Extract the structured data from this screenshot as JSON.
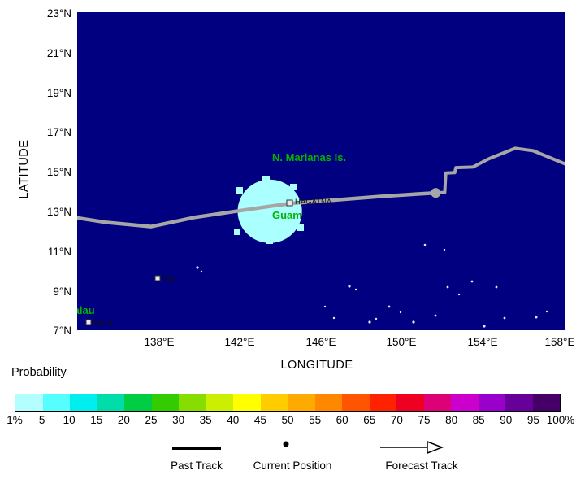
{
  "map": {
    "ocean_color": "#000080",
    "y_axis_title": "LATITUDE",
    "x_axis_title": "LONGITUDE",
    "y_ticks": [
      "23°N",
      "21°N",
      "19°N",
      "17°N",
      "15°N",
      "13°N",
      "11°N",
      "9°N",
      "7°N"
    ],
    "x_ticks": [
      "138°E",
      "142°E",
      "146°E",
      "150°E",
      "154°E",
      "158°E"
    ],
    "place_label_color": "#00b400",
    "places": {
      "n_marianas": "N. Marianas Is.",
      "guam": "Guam",
      "palau": "Palau",
      "hagatna": "HAGATNA",
      "yap": "Yap",
      "koror": "Koror"
    },
    "probability_area": {
      "center_lon": 143.5,
      "center_lat": 13.05,
      "radius_deg": 1.6,
      "color": "#aaffff"
    },
    "track": {
      "color": "#a6a6a6",
      "past_points": [
        [
          133.9,
          12.72
        ],
        [
          135.3,
          12.5
        ],
        [
          137.6,
          12.28
        ],
        [
          139.8,
          12.75
        ],
        [
          141.8,
          13.05
        ],
        [
          143.5,
          13.3
        ],
        [
          144.6,
          13.45
        ],
        [
          146.5,
          13.6
        ],
        [
          149.0,
          13.8
        ],
        [
          151.75,
          13.98
        ]
      ],
      "current_position": [
        151.75,
        13.98
      ],
      "forecast_points": [
        [
          151.75,
          13.98
        ],
        [
          152.2,
          14.0
        ],
        [
          152.25,
          14.98
        ],
        [
          152.7,
          15.0
        ],
        [
          152.75,
          15.25
        ],
        [
          153.6,
          15.28
        ],
        [
          154.4,
          15.7
        ],
        [
          155.7,
          16.22
        ],
        [
          156.6,
          16.1
        ],
        [
          158.4,
          15.35
        ]
      ]
    }
  },
  "colorbar": {
    "title": "Probability",
    "colors": [
      "#b3ffff",
      "#55ffff",
      "#00eeee",
      "#00ddaa",
      "#00cc44",
      "#33cc00",
      "#88dd00",
      "#ccee00",
      "#ffff00",
      "#ffcc00",
      "#ffaa00",
      "#ff8800",
      "#ff5500",
      "#ff2200",
      "#ee0022",
      "#dd0077",
      "#cc00cc",
      "#9900cc",
      "#660099",
      "#440066"
    ],
    "tick_labels": [
      "1%",
      "5",
      "10",
      "15",
      "20",
      "25",
      "30",
      "35",
      "40",
      "45",
      "50",
      "55",
      "60",
      "65",
      "70",
      "75",
      "80",
      "85",
      "90",
      "95",
      "100%"
    ]
  },
  "legend": {
    "past_track_label": "Past Track",
    "current_position_label": "Current Position",
    "forecast_track_label": "Forecast Track"
  }
}
